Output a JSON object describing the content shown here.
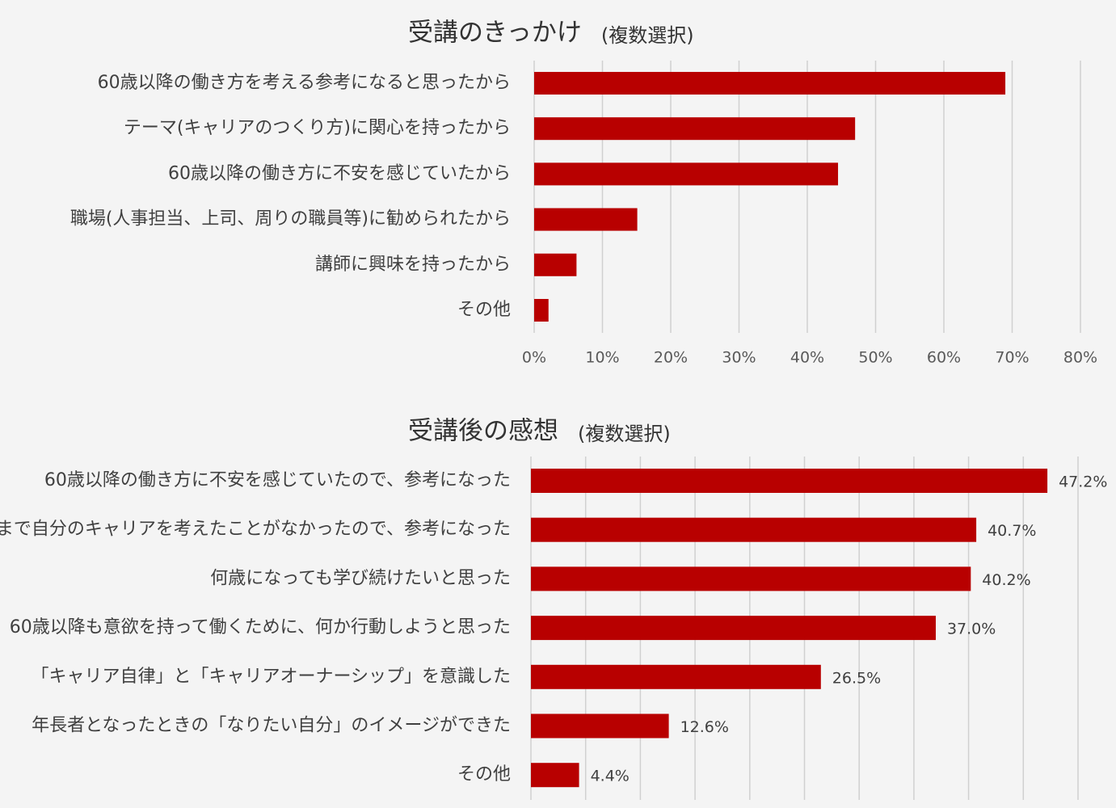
{
  "chart_data": [
    {
      "type": "bar",
      "orientation": "horizontal",
      "title": "受講のきっかけ",
      "subtitle": "(複数選択)",
      "categories": [
        "60歳以降の働き方を考える参考になると思ったから",
        "テーマ(キャリアのつくり方)に関心を持ったから",
        "60歳以降の働き方に不安を感じていたから",
        "職場(人事担当、上司、周りの職員等)に勧められたから",
        "講師に興味を持ったから",
        "その他"
      ],
      "values": [
        69,
        47,
        44.5,
        15.1,
        6.2,
        2.1
      ],
      "color": "#b80000",
      "xlim": [
        0,
        80
      ],
      "xticks": [
        {
          "value": 0,
          "label": "0%"
        },
        {
          "value": 10,
          "label": "10%"
        },
        {
          "value": 20,
          "label": "20%"
        },
        {
          "value": 30,
          "label": "30%"
        },
        {
          "value": 40,
          "label": "40%"
        },
        {
          "value": 50,
          "label": "50%"
        },
        {
          "value": 60,
          "label": "60%"
        },
        {
          "value": 70,
          "label": "70%"
        },
        {
          "value": 80,
          "label": "80%"
        }
      ],
      "show_tick_labels": true,
      "grid": true
    },
    {
      "type": "bar",
      "orientation": "horizontal",
      "title": "受講後の感想",
      "subtitle": "(複数選択)",
      "categories": [
        "60歳以降の働き方に不安を感じていたので、参考になった",
        "今まで自分のキャリアを考えたことがなかったので、参考になった",
        "何歳になっても学び続けたいと思った",
        "60歳以降も意欲を持って働くために、何か行動しようと思った",
        "「キャリア自律」と「キャリアオーナーシップ」を意識した",
        "年長者となったときの「なりたい自分」のイメージができた",
        "その他"
      ],
      "values": [
        47.2,
        40.7,
        40.2,
        37.0,
        26.5,
        12.6,
        4.4
      ],
      "value_labels": [
        "47.2%",
        "40.7%",
        "40.2%",
        "37.0%",
        "26.5%",
        "12.6%",
        "4.4%"
      ],
      "color": "#b80000",
      "xlim": [
        0,
        50
      ],
      "xticks": [
        0,
        5,
        10,
        15,
        20,
        25,
        30,
        35,
        40,
        45,
        50
      ],
      "show_tick_labels": false,
      "grid": true
    }
  ]
}
